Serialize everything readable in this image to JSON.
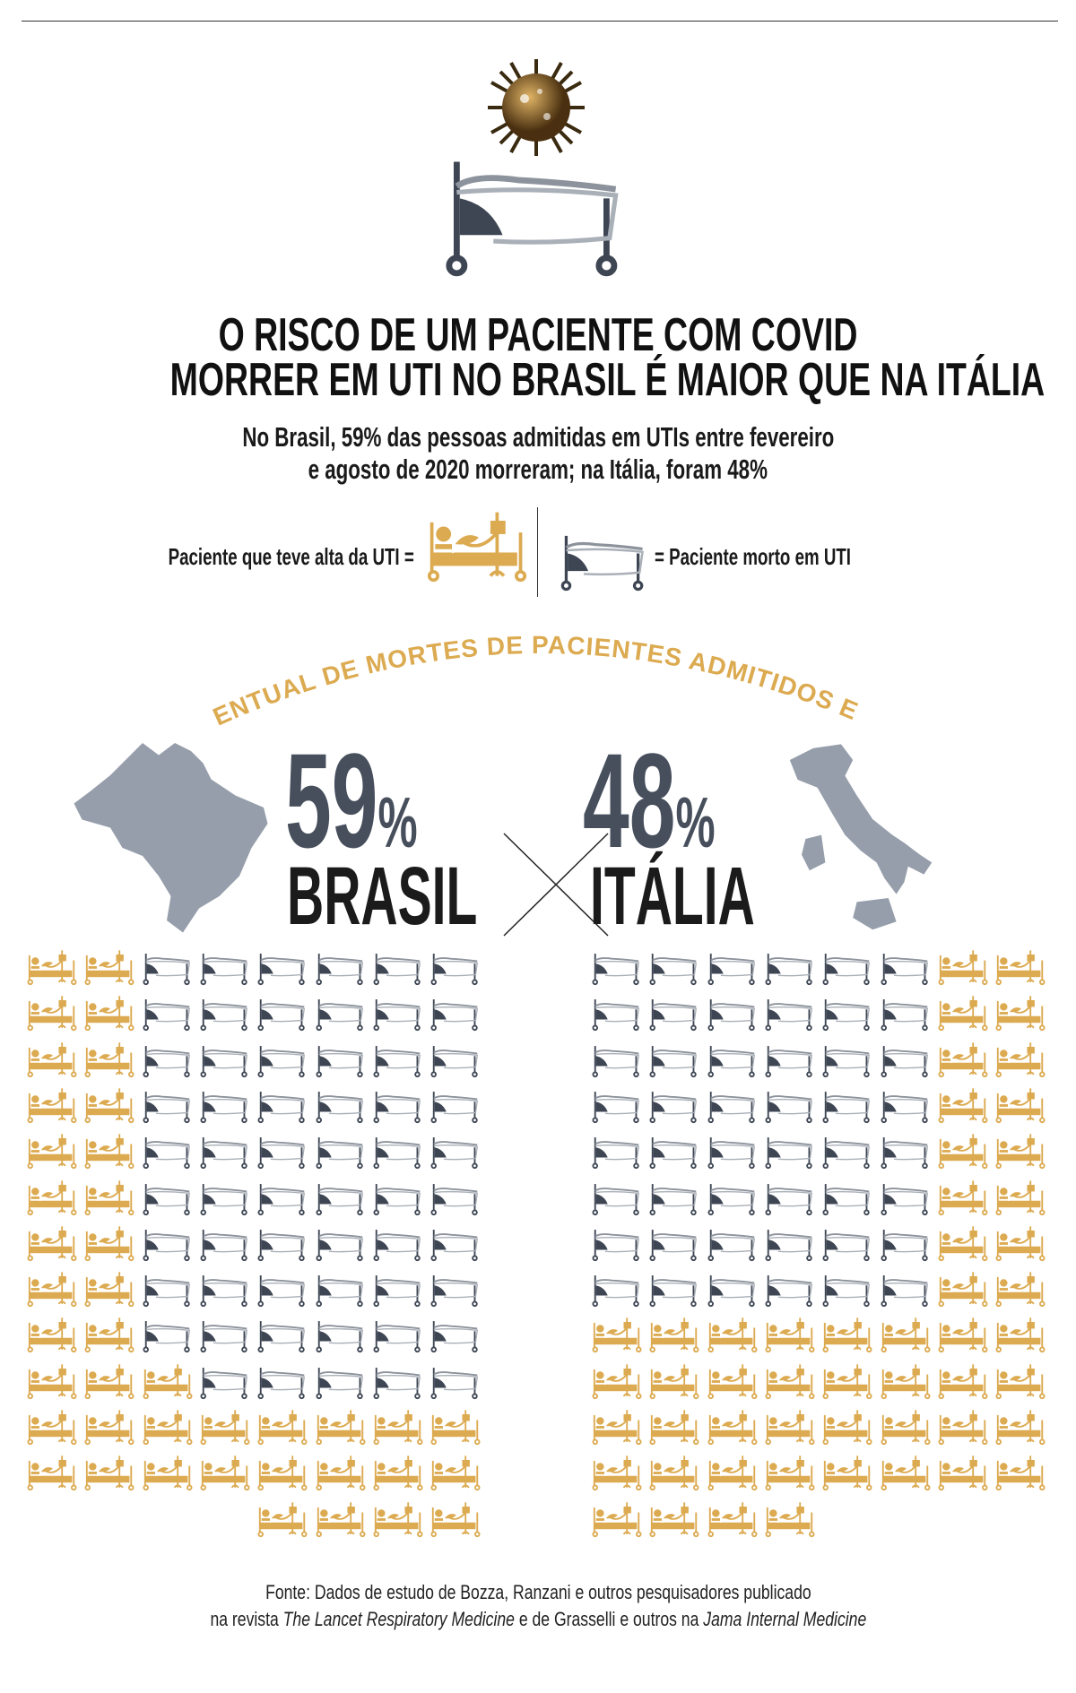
{
  "header": {
    "title_line1": "O RISCO DE UM PACIENTE COM COVID",
    "title_line2": "MORRER EM UTI NO BRASIL É MAIOR QUE NA ITÁLIA",
    "subtitle_line1": "No Brasil, 59% das pessoas admitidas em UTIs entre fevereiro",
    "subtitle_line2": "e agosto de 2020 morreram; na Itália, foram 48%"
  },
  "legend": {
    "alive_label": "Paciente que teve alta da UTI =",
    "dead_label": "= Paciente morto em UTI"
  },
  "colors": {
    "alive": "#dcaa50",
    "dead": "#3e4654",
    "map": "#969eab",
    "number": "#474f5d"
  },
  "chart_data": {
    "type": "pictogram",
    "title": "PERCENTUAL DE MORTES DE PACIENTES ADMITIDOS EM UTIs",
    "series": [
      {
        "name": "BRASIL",
        "value_label": "59",
        "pct_sign": "%",
        "deaths": 59,
        "discharged": 41,
        "rows": [
          "AADDDDDD",
          "AADDDDDD",
          "AADDDDDD",
          "AADDDDDD",
          "AADDDDDD",
          "AADDDDDD",
          "AADDDDDD",
          "AADDDDDD",
          "AADDDDDD",
          "AAADDDDD",
          "AAAAAAAA",
          "AAAAAAAA",
          "____AAAA"
        ]
      },
      {
        "name": "ITÁLIA",
        "value_label": "48",
        "pct_sign": "%",
        "deaths": 48,
        "discharged": 52,
        "rows": [
          "DDDDDDAA",
          "DDDDDDAA",
          "DDDDDDAA",
          "DDDDDDAA",
          "DDDDDDAA",
          "DDDDDDAA",
          "DDDDDDAA",
          "DDDDDDAA",
          "AAAAAAAA",
          "AAAAAAAA",
          "AAAAAAAA",
          "AAAAAAAA",
          "AAAA____"
        ]
      }
    ]
  },
  "source": {
    "line1": "Fonte: Dados de estudo de Bozza, Ranzani e outros pesquisadores publicado",
    "line2_a": "na revista ",
    "line2_b": "The Lancet Respiratory Medicine",
    "line2_c": " e de Grasselli e outros na ",
    "line2_d": "Jama Internal Medicine"
  }
}
